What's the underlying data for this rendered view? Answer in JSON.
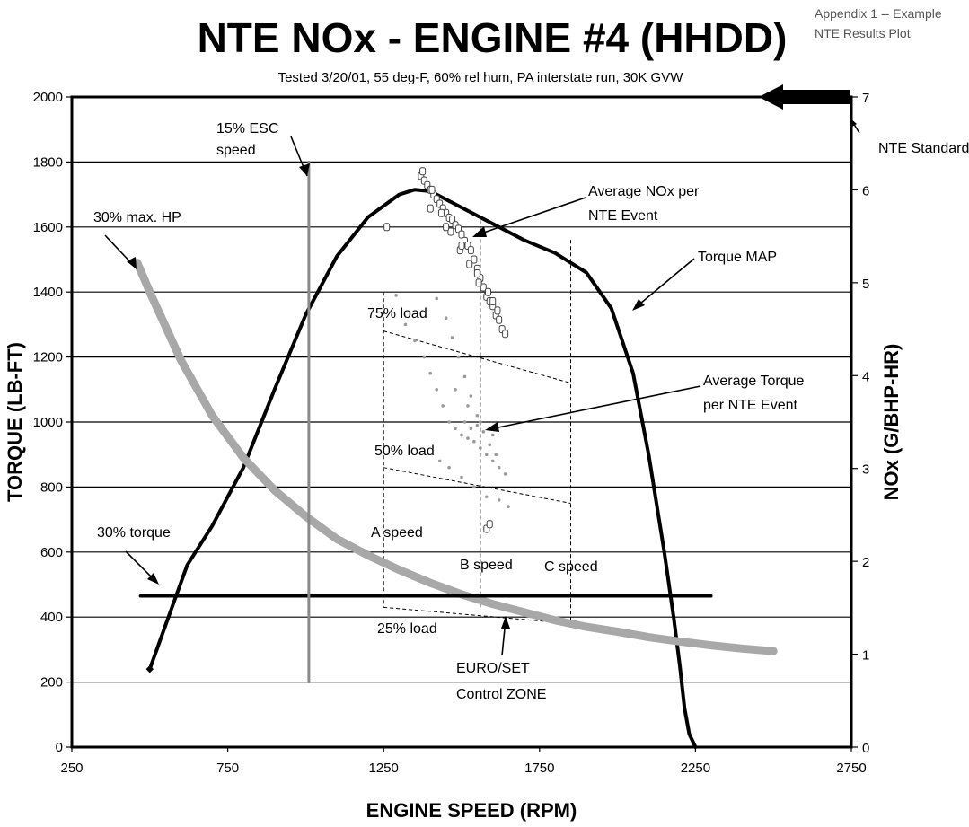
{
  "header": {
    "title": "NTE NOx - ENGINE #4 (HHDD)",
    "subtitle": "Tested 3/20/01, 55 deg-F, 60% rel hum, PA interstate run, 30K GVW",
    "appendix_line1": "Appendix 1  -- Example",
    "appendix_line2": "NTE Results Plot"
  },
  "chart_data": {
    "type": "scatter",
    "title": "NTE NOx - ENGINE #4 (HHDD)",
    "subtitle": "Tested 3/20/01, 55 deg-F, 60% rel hum, PA interstate run, 30K GVW",
    "xlabel": "ENGINE SPEED (RPM)",
    "ylabel": "TORQUE (LB-FT)",
    "y2label": "NOx (G/BHP-HR)",
    "xlim": [
      250,
      2750
    ],
    "ylim": [
      0,
      2000
    ],
    "y2lim": [
      0,
      7
    ],
    "xticks": [
      "250",
      "750",
      "1250",
      "1750",
      "2250",
      "2750"
    ],
    "yticks": [
      "0",
      "200",
      "400",
      "600",
      "800",
      "1000",
      "1200",
      "1400",
      "1600",
      "1800",
      "2000"
    ],
    "y2ticks": [
      "0",
      "1",
      "2",
      "3",
      "4",
      "5",
      "6",
      "7"
    ],
    "grid": "horizontal",
    "colors": {
      "torque_map": "#000000",
      "hp_curve": "#a8a8a8",
      "nte_points": "#9a9a9a",
      "grid": "#000000"
    },
    "series": [
      {
        "name": "Torque MAP",
        "type": "line",
        "x": [
          500,
          560,
          620,
          700,
          800,
          900,
          1000,
          1100,
          1200,
          1300,
          1350,
          1400,
          1500,
          1600,
          1700,
          1800,
          1900,
          1980,
          2050,
          2100,
          2150,
          2180,
          2200,
          2215,
          2230,
          2250
        ],
        "y": [
          240,
          400,
          560,
          680,
          860,
          1100,
          1330,
          1510,
          1630,
          1700,
          1715,
          1710,
          1660,
          1610,
          1560,
          1520,
          1460,
          1350,
          1150,
          900,
          600,
          400,
          250,
          120,
          40,
          0
        ]
      },
      {
        "name": "30% max. HP",
        "type": "line",
        "x": [
          460,
          500,
          600,
          700,
          800,
          900,
          1000,
          1100,
          1200,
          1300,
          1400,
          1500,
          1600,
          1700,
          1800,
          1900,
          2000,
          2100,
          2200,
          2300,
          2400,
          2500
        ],
        "y": [
          1490,
          1400,
          1190,
          1020,
          890,
          790,
          710,
          640,
          590,
          545,
          505,
          470,
          440,
          415,
          390,
          370,
          355,
          338,
          325,
          313,
          303,
          295
        ]
      },
      {
        "name": "30% torque",
        "type": "line",
        "x": [
          470,
          2300
        ],
        "y": [
          465,
          465
        ]
      },
      {
        "name": "15% ESC speed",
        "type": "line",
        "x": [
          1010,
          1010
        ],
        "y": [
          200,
          1800
        ]
      },
      {
        "name": "Average NOx per NTE Event",
        "axis": "y2",
        "type": "scatter",
        "x": [
          1370,
          1380,
          1390,
          1400,
          1410,
          1420,
          1430,
          1440,
          1450,
          1460,
          1470,
          1480,
          1490,
          1500,
          1510,
          1520,
          1530,
          1540,
          1550,
          1560,
          1570,
          1580,
          1590,
          1600,
          1610,
          1620,
          1630,
          1640,
          1375,
          1405,
          1435,
          1465,
          1495,
          1525,
          1555,
          1585,
          1615,
          1400,
          1450,
          1500,
          1550,
          1600,
          1260,
          1580,
          1590
        ],
        "y": [
          6.15,
          6.1,
          6.05,
          6.0,
          5.95,
          5.9,
          5.85,
          5.8,
          5.75,
          5.7,
          5.68,
          5.62,
          5.58,
          5.52,
          5.45,
          5.4,
          5.35,
          5.25,
          5.15,
          5.05,
          4.95,
          4.85,
          4.8,
          4.75,
          4.65,
          4.6,
          4.5,
          4.45,
          6.2,
          6.0,
          5.75,
          5.55,
          5.35,
          5.2,
          5.0,
          4.9,
          4.7,
          5.8,
          5.6,
          5.4,
          5.1,
          4.8,
          5.6,
          2.35,
          2.4
        ]
      },
      {
        "name": "Average Torque per NTE Event",
        "type": "scatter",
        "x": [
          1290,
          1320,
          1350,
          1380,
          1400,
          1420,
          1440,
          1460,
          1480,
          1500,
          1520,
          1540,
          1560,
          1580,
          1600,
          1620,
          1640,
          1420,
          1450,
          1470,
          1490,
          1510,
          1530,
          1550,
          1570,
          1590,
          1610,
          1430,
          1460,
          1500,
          1540,
          1580,
          1620,
          1650,
          1480,
          1520,
          1560,
          1600,
          1510,
          1530,
          1550
        ],
        "y": [
          1390,
          1300,
          1250,
          1200,
          1150,
          1100,
          1050,
          1000,
          980,
          960,
          950,
          940,
          920,
          900,
          880,
          860,
          840,
          1380,
          1320,
          1260,
          1200,
          1140,
          1080,
          1020,
          970,
          930,
          900,
          880,
          860,
          830,
          800,
          770,
          760,
          740,
          1100,
          1050,
          1000,
          960,
          1000,
          980,
          990
        ]
      }
    ],
    "control_zone": {
      "x": [
        1250,
        1250,
        1850,
        1850
      ],
      "y": [
        1400,
        430,
        380,
        1560
      ],
      "load_lines": [
        {
          "label": "75% load",
          "x": [
            1250,
            1850
          ],
          "y": [
            1280,
            1120
          ]
        },
        {
          "label": "50% load",
          "x": [
            1250,
            1850
          ],
          "y": [
            860,
            750
          ]
        },
        {
          "label": "25% load",
          "x": [
            1250,
            1850
          ],
          "y": [
            430,
            380
          ]
        }
      ],
      "speed_lines": [
        {
          "label": "A speed",
          "x": 1250
        },
        {
          "label": "B speed",
          "x": 1560
        },
        {
          "label": "C speed",
          "x": 1850
        }
      ]
    },
    "annotations": [
      "15% ESC speed",
      "30% max. HP",
      "Average NOx per NTE Event",
      "Torque MAP",
      "75% load",
      "Average Torque per NTE Event",
      "50% load",
      "30% torque",
      "A speed",
      "B speed",
      "C speed",
      "25% load",
      "EURO/SET Control ZONE",
      "NTE Standard"
    ],
    "nte_standard": 7.0
  },
  "labels": {
    "esc_line1": "15% ESC",
    "esc_line2": "speed",
    "max_hp": "30% max. HP",
    "avg_nox_line1": "Average NOx per",
    "avg_nox_line2": "NTE Event",
    "torque_map": "Torque MAP",
    "load75": "75% load",
    "avg_torque_line1": "Average Torque",
    "avg_torque_line2": "per NTE Event",
    "load50": "50% load",
    "torque30": "30% torque",
    "a_speed": "A speed",
    "b_speed": "B speed",
    "c_speed": "C speed",
    "load25": "25% load",
    "euro_line1": "EURO/SET",
    "euro_line2": "Control ZONE",
    "nte_standard": "NTE Standard"
  }
}
